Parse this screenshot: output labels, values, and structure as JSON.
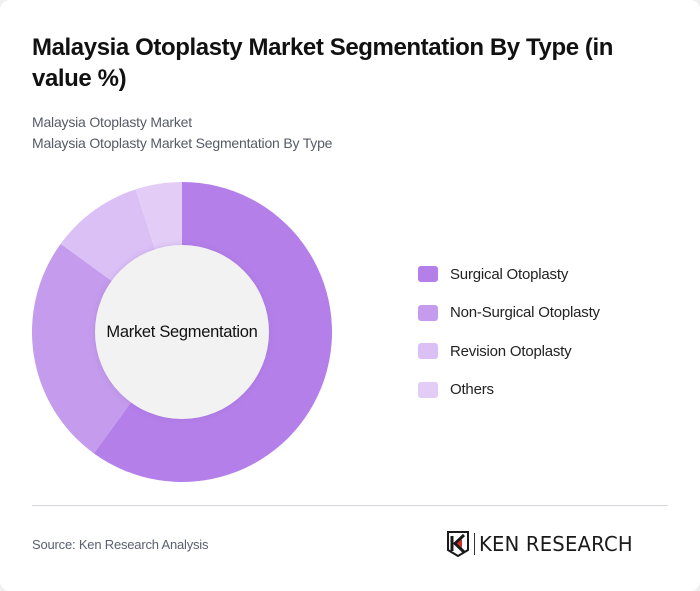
{
  "header": {
    "title": "Malaysia Otoplasty Market Segmentation By Type (in value %)",
    "subtitle_1": "Malaysia Otoplasty Market",
    "subtitle_2": "Malaysia Otoplasty Market Segmentation By Type"
  },
  "chart": {
    "center_label": "Market Segmentation"
  },
  "legend": {
    "items": [
      {
        "label": "Surgical Otoplasty",
        "color": "#b47fe9"
      },
      {
        "label": "Non-Surgical Otoplasty",
        "color": "#c49bed"
      },
      {
        "label": "Revision Otoplasty",
        "color": "#dbc0f5"
      },
      {
        "label": "Others",
        "color": "#e3cdf7"
      }
    ]
  },
  "footer": {
    "source": "Source: Ken Research Analysis",
    "logo_text": "KEN RESEARCH"
  },
  "chart_data": {
    "type": "pie",
    "variant": "donut",
    "title": "Malaysia Otoplasty Market Segmentation By Type (in value %)",
    "center_label": "Market Segmentation",
    "categories": [
      "Surgical Otoplasty",
      "Non-Surgical Otoplasty",
      "Revision Otoplasty",
      "Others"
    ],
    "values": [
      60,
      25,
      10,
      5
    ],
    "colors": [
      "#b47fe9",
      "#c49bed",
      "#dbc0f5",
      "#e3cdf7"
    ],
    "unit": "%",
    "legend_position": "right",
    "start_angle_deg": 0,
    "direction": "clockwise"
  }
}
